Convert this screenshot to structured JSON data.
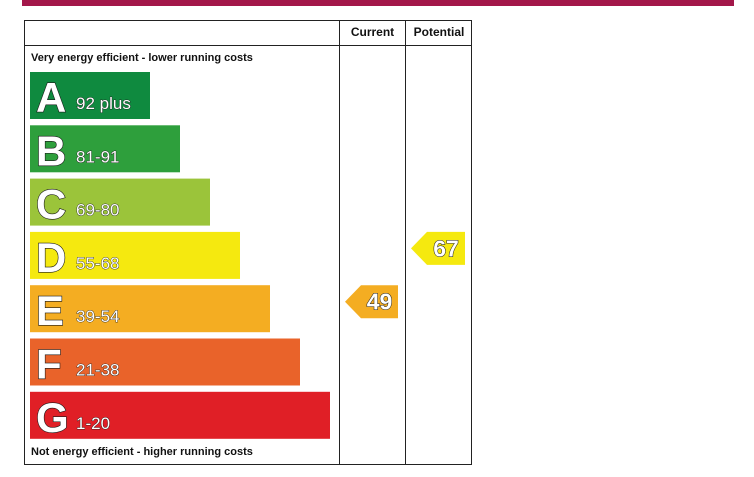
{
  "header": {
    "current_label": "Current",
    "potential_label": "Potential"
  },
  "notes": {
    "top": "Very energy efficient - lower running costs",
    "bottom": "Not energy efficient - higher running costs"
  },
  "chart_data": {
    "type": "bar",
    "categories": [
      "A",
      "B",
      "C",
      "D",
      "E",
      "F",
      "G"
    ],
    "ranges": [
      "92 plus",
      "81-91",
      "69-80",
      "55-68",
      "39-54",
      "21-38",
      "1-20"
    ],
    "colors": [
      "#0f8a3f",
      "#2e9f3c",
      "#9bc43a",
      "#f5e90f",
      "#f4ad22",
      "#e9632a",
      "#e01f26"
    ],
    "current": {
      "value": 49,
      "band": "E",
      "color": "#f4ad22"
    },
    "potential": {
      "value": 67,
      "band": "D",
      "color": "#f5e90f"
    }
  }
}
